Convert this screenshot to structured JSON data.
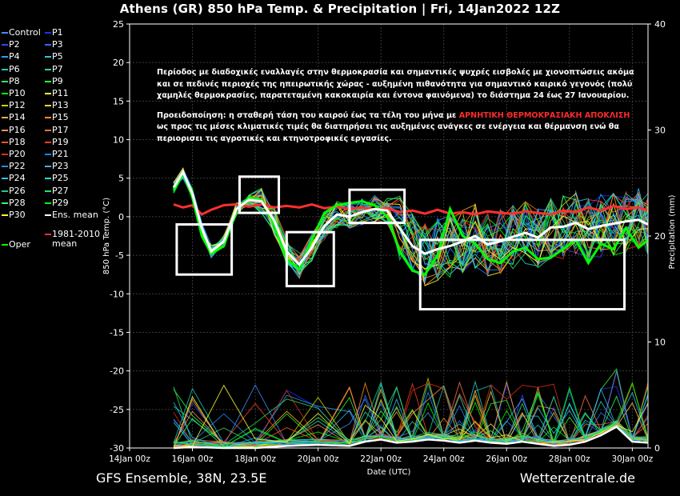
{
  "title": "Athens  (GR)  850 hPa Temp. & Precipitation | Fri, 14Jan2022 12Z",
  "footer_left": "GFS Ensemble, 38N, 23.5E",
  "footer_right": "Wetterzentrale.de",
  "annotation": {
    "para1": "Περίοδος με διαδοχικές εναλλαγές στην θερμοκρασία και σημαντικές ψυχρές εισβολές με χιονοπτώσεις ακόμα και σε πεδινές περιοχές της ηπειρωτικής χώρας - αυξημένη πιθανότητα για σημαντικό καιρικό γεγονός (πολύ χαμηλές θερμοκρασίες, παρατεταμένη κακοκαιρία και έντονα φαινόμενα) το διάστημα 24 έως 27 Ιανουαρίου.",
    "para2_pre": "Προειδοποίηση: η σταθερή τάση του καιρού έως τα τέλη του μήνα με ",
    "para2_hl": "ΑΡΝΗΤΙΚΗ ΘΕΡΜΟΚΡΑΣΙΑΚΗ ΑΠΟΚΛΙΣΗ",
    "para2_post": " ως προς τις μέσες κλιματικές τιμές θα διατηρήσει τις αυξημένες ανάγκες σε ενέργεια και θέρμανση ενώ θα περιορισει τις αγροτικές και κτηνοτροφικές εργασίες.",
    "highlight_color": "#ff2a2a"
  },
  "legend": {
    "items": [
      {
        "label": "Control",
        "color": "#3f8fff"
      },
      {
        "label": "P1",
        "color": "#2030ff"
      },
      {
        "label": "P2",
        "color": "#4040ff"
      },
      {
        "label": "P3",
        "color": "#2a6aff"
      },
      {
        "label": "P4",
        "color": "#28a0ff"
      },
      {
        "label": "P5",
        "color": "#20d0d0"
      },
      {
        "label": "P6",
        "color": "#20c8c0"
      },
      {
        "label": "P7",
        "color": "#20d8a0"
      },
      {
        "label": "P8",
        "color": "#30e070"
      },
      {
        "label": "P9",
        "color": "#30ff30"
      },
      {
        "label": "P10",
        "color": "#00ff00"
      },
      {
        "label": "P11",
        "color": "#ffff30"
      },
      {
        "label": "P12",
        "color": "#d0d000"
      },
      {
        "label": "P13",
        "color": "#ffd040"
      },
      {
        "label": "P14",
        "color": "#ffb030"
      },
      {
        "label": "P15",
        "color": "#ff9020"
      },
      {
        "label": "P16",
        "color": "#ff9060"
      },
      {
        "label": "P17",
        "color": "#ff7040"
      },
      {
        "label": "P18",
        "color": "#ff5a2a"
      },
      {
        "label": "P19",
        "color": "#ff4020"
      },
      {
        "label": "P20",
        "color": "#e03010"
      },
      {
        "label": "P21",
        "color": "#2080ff"
      },
      {
        "label": "P22",
        "color": "#1e90ff"
      },
      {
        "label": "P23",
        "color": "#40b0ff"
      },
      {
        "label": "P24",
        "color": "#30c0ff"
      },
      {
        "label": "P25",
        "color": "#20e0c0"
      },
      {
        "label": "P26",
        "color": "#20c890"
      },
      {
        "label": "P27",
        "color": "#30e060"
      },
      {
        "label": "P28",
        "color": "#30ff60"
      },
      {
        "label": "P29",
        "color": "#00ff00"
      },
      {
        "label": "P30",
        "color": "#ffff30"
      },
      {
        "label": "Ens. mean",
        "color": "#ffffff"
      }
    ],
    "oper": {
      "label": "Oper",
      "color": "#00ff00"
    },
    "clim": {
      "label": "1981-2010",
      "label2": "mean",
      "color": "#ff3030"
    }
  },
  "chart_data": {
    "type": "line",
    "xlabel": "Date (UTC)",
    "ylabel": "850 hPa Temp. (°C)",
    "y2label": "Precipitation (mm)",
    "ylim": [
      -30,
      25
    ],
    "y2lim": [
      0,
      40
    ],
    "xlim": [
      "14Jan 00z",
      "30Jan 12z"
    ],
    "x_ticks": [
      "14Jan 00z",
      "16Jan 00z",
      "18Jan 00z",
      "20Jan 00z",
      "22Jan 00z",
      "24Jan 00z",
      "26Jan 00z",
      "28Jan 00z",
      "30Jan 00z"
    ],
    "y_ticks": [
      25,
      20,
      15,
      10,
      5,
      0,
      -5,
      -10,
      -15,
      -20,
      -25,
      -30
    ],
    "y2_ticks": [
      40,
      30,
      20,
      10,
      0
    ],
    "grid": true,
    "ens_mean_temp": {
      "days": [
        15.4,
        15.7,
        16.0,
        16.3,
        16.6,
        17.0,
        17.4,
        17.8,
        18.2,
        18.6,
        19.0,
        19.4,
        19.8,
        20.2,
        20.6,
        21.0,
        21.4,
        21.8,
        22.2,
        22.6,
        23.0,
        23.4,
        23.8,
        24.2,
        24.6,
        25.0,
        25.4,
        25.8,
        26.2,
        26.6,
        27.0,
        27.4,
        27.8,
        28.2,
        28.6,
        29.0,
        29.4,
        29.8,
        30.2,
        30.5
      ],
      "values": [
        3.8,
        5.8,
        3.0,
        -1.5,
        -4.5,
        -3.2,
        1.0,
        2.2,
        2.0,
        -0.5,
        -4.5,
        -6.2,
        -4.0,
        -1.2,
        0.3,
        0.0,
        0.6,
        1.0,
        0.8,
        -1.5,
        -3.8,
        -4.8,
        -4.2,
        -3.8,
        -3.2,
        -2.5,
        -3.6,
        -3.2,
        -2.6,
        -2.1,
        -2.7,
        -1.4,
        -1.3,
        -0.8,
        -1.6,
        -1.2,
        -0.9,
        -0.6,
        -0.4,
        -1.0
      ]
    },
    "oper_temp": {
      "days": [
        15.4,
        15.7,
        16.0,
        16.3,
        16.6,
        17.0,
        17.4,
        17.8,
        18.2,
        18.6,
        19.0,
        19.4,
        19.8,
        20.2,
        20.6,
        21.0,
        21.4,
        21.8,
        22.2,
        22.6,
        23.0,
        23.4,
        23.8,
        24.2,
        24.6,
        25.0,
        25.4,
        25.8,
        26.2,
        26.6,
        27.0,
        27.4,
        27.8,
        28.2,
        28.6,
        29.0,
        29.4,
        29.8,
        30.2,
        30.5
      ],
      "values": [
        3.5,
        5.8,
        2.5,
        -2.5,
        -4.8,
        -3.8,
        1.0,
        2.5,
        2.2,
        -1.0,
        -5.5,
        -6.8,
        -3.0,
        0.5,
        1.5,
        1.8,
        2.0,
        1.5,
        0.0,
        -4.5,
        -7.0,
        -7.5,
        -5.0,
        1.0,
        -2.5,
        -3.5,
        -5.5,
        -6.0,
        -4.5,
        -4.0,
        -5.5,
        -5.3,
        -4.2,
        -3.0,
        -6.0,
        -3.5,
        -4.2,
        -1.5,
        -4.0,
        -3.0
      ]
    },
    "clim_mean": {
      "days": [
        15.4,
        15.7,
        16.0,
        16.3,
        16.6,
        17.0,
        17.4,
        17.8,
        18.2,
        18.6,
        19.0,
        19.4,
        19.8,
        20.2,
        20.6,
        21.0,
        21.4,
        21.8,
        22.2,
        22.6,
        23.0,
        23.4,
        23.8,
        24.2,
        24.6,
        25.0,
        25.4,
        25.8,
        26.2,
        26.6,
        27.0,
        27.4,
        27.8,
        28.2,
        28.6,
        29.0,
        29.4,
        29.8,
        30.2,
        30.5
      ],
      "values": [
        1.6,
        1.2,
        1.5,
        0.3,
        0.9,
        1.5,
        1.6,
        1.3,
        1.6,
        1.2,
        1.4,
        1.2,
        1.6,
        1.1,
        1.3,
        1.0,
        1.2,
        0.9,
        1.1,
        0.6,
        0.8,
        0.4,
        0.9,
        0.4,
        0.6,
        0.3,
        0.7,
        0.5,
        0.4,
        0.7,
        0.5,
        0.3,
        0.8,
        0.6,
        1.2,
        0.8,
        1.4,
        1.0,
        1.2,
        0.8
      ]
    },
    "ens_mean_precip_mm": {
      "days": [
        15.4,
        16.0,
        17.0,
        18.0,
        19.0,
        20.0,
        21.0,
        21.5,
        22.0,
        22.5,
        23.0,
        23.5,
        24.0,
        24.5,
        25.0,
        25.5,
        26.0,
        26.5,
        27.0,
        27.5,
        28.0,
        28.5,
        29.0,
        29.5,
        30.0,
        30.5
      ],
      "values": [
        0,
        0.1,
        0,
        0,
        0.2,
        0.3,
        0.2,
        0.6,
        0.8,
        0.5,
        0.6,
        0.8,
        0.7,
        0.5,
        0.7,
        0.5,
        0.4,
        0.6,
        0.4,
        0.2,
        0.3,
        0.6,
        1.2,
        2.0,
        0.6,
        0.5
      ]
    },
    "annotation_boxes_temp": [
      {
        "from_day": "15Jan 12z",
        "to_day": "17Jan 06z",
        "t_top": -1.0,
        "t_bottom": -7.5
      },
      {
        "from_day": "17Jan 12z",
        "to_day": "18Jan 18z",
        "t_top": 5.2,
        "t_bottom": 0.5
      },
      {
        "from_day": "19Jan 00z",
        "to_day": "20Jan 12z",
        "t_top": -2.0,
        "t_bottom": -9.0
      },
      {
        "from_day": "21Jan 00z",
        "to_day": "22Jan 18z",
        "t_top": 3.5,
        "t_bottom": -0.8
      },
      {
        "from_day": "23Jan 06z",
        "to_day": "29Jan 18z",
        "t_top": -3.0,
        "t_bottom": -12.0
      }
    ]
  }
}
